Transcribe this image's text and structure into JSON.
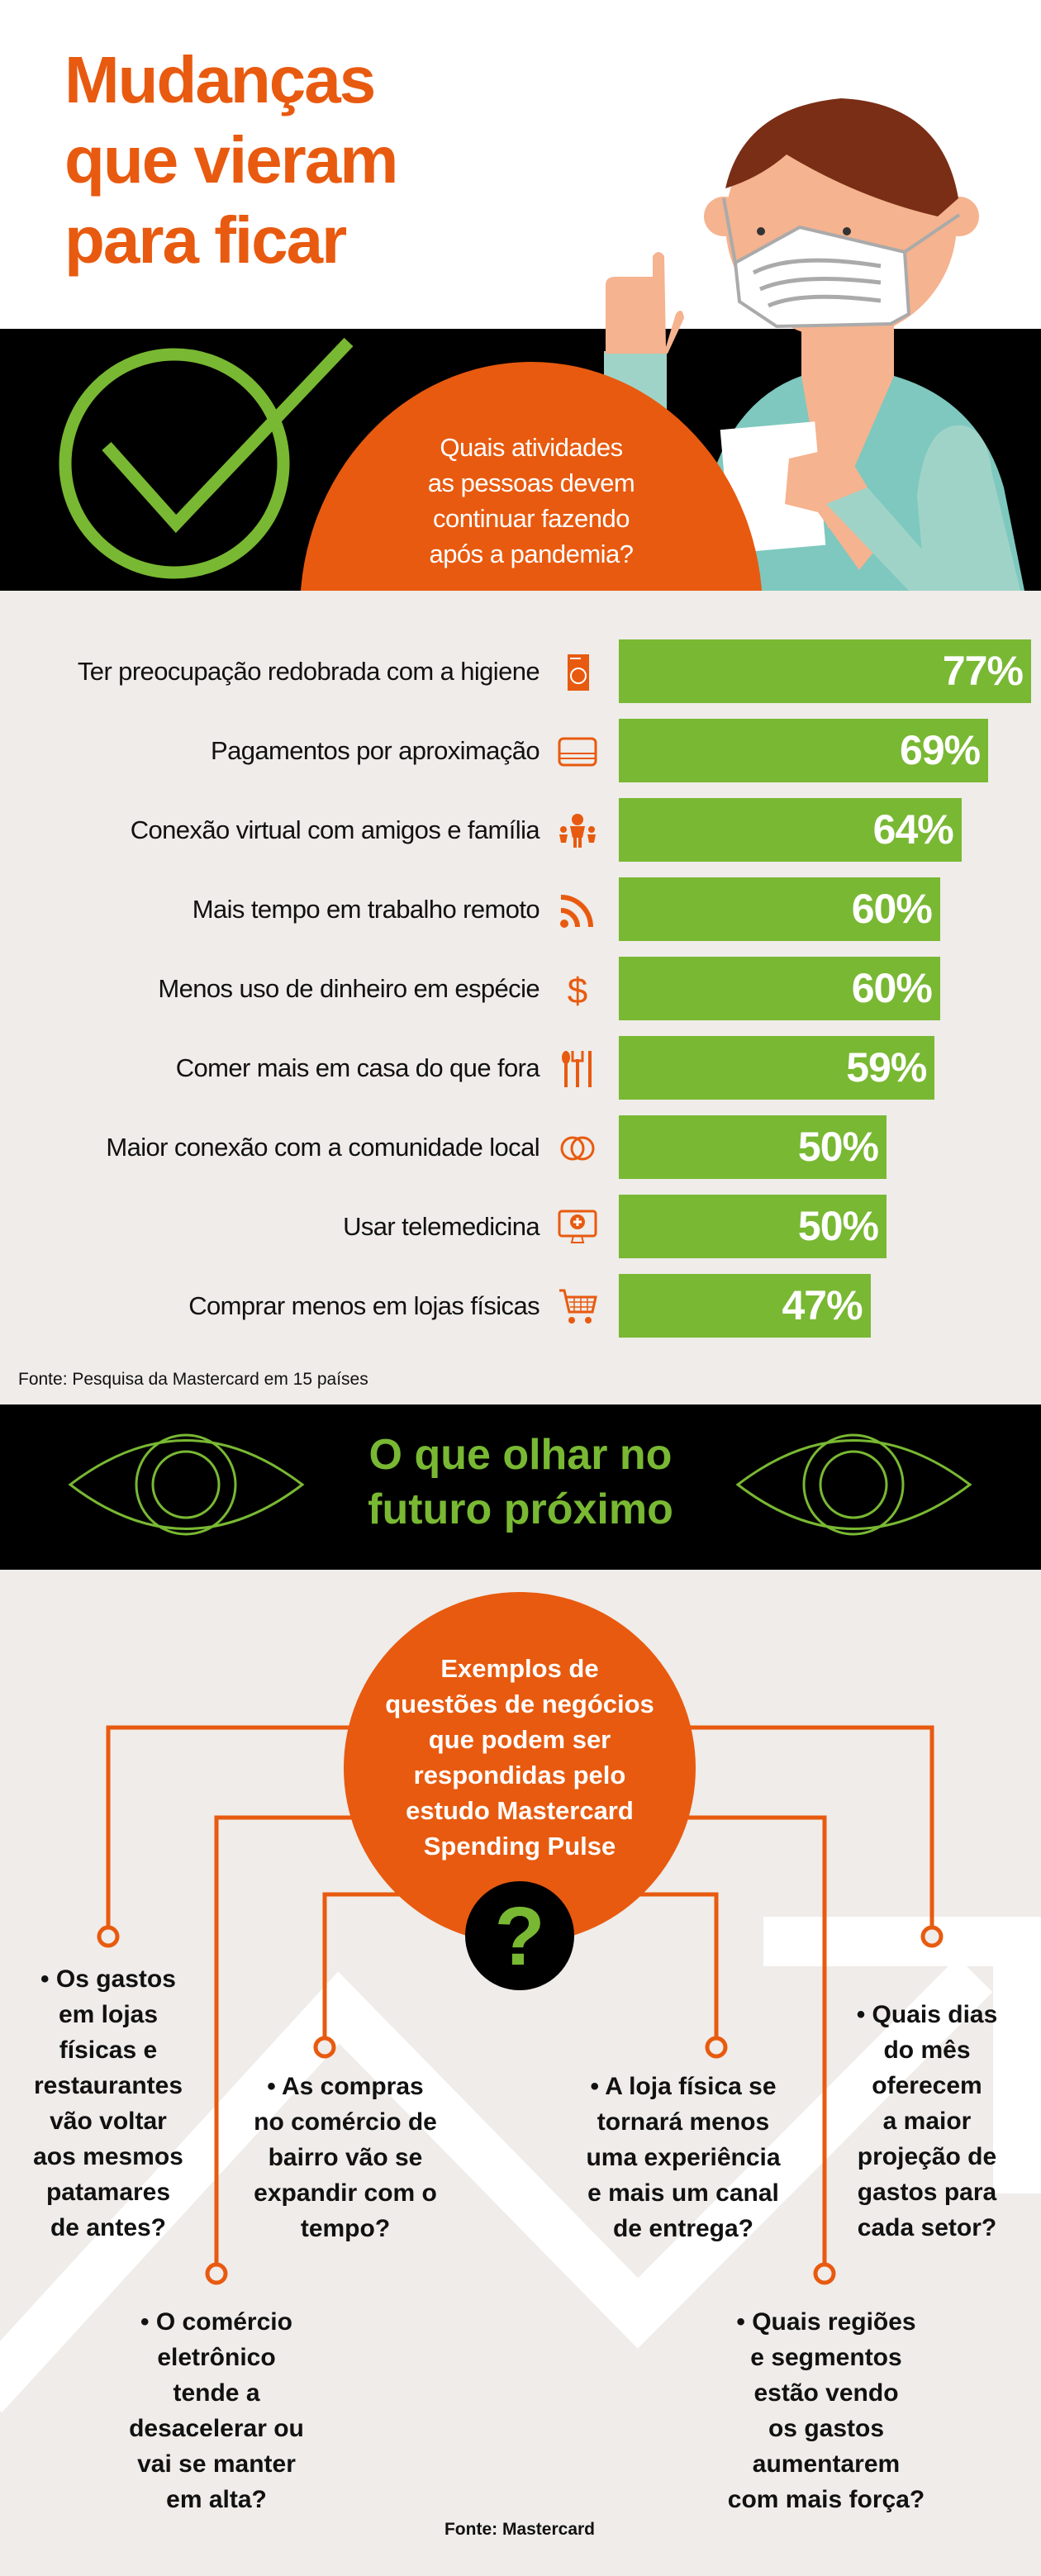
{
  "header": {
    "title_lines": [
      "Mudanças",
      "que vieram",
      "para ficar"
    ]
  },
  "question_bubble": {
    "lines": [
      "Quais atividades",
      "as pessoas devem",
      "continuar fazendo",
      "após a pandemia?"
    ]
  },
  "colors": {
    "orange": "#e85a0f",
    "green": "#79b833",
    "black": "#000000",
    "background": "#efece9"
  },
  "chart_data": {
    "type": "bar",
    "orientation": "horizontal",
    "categories": [
      "Ter preocupação redobrada com a higiene",
      "Pagamentos por aproximação",
      "Conexão virtual com amigos e família",
      "Mais tempo em trabalho remoto",
      "Menos uso de dinheiro em espécie",
      "Comer mais em casa do que fora",
      "Maior conexão com a comunidade local",
      "Usar telemedicina",
      "Comprar menos em lojas físicas"
    ],
    "values": [
      77,
      69,
      64,
      60,
      60,
      59,
      50,
      50,
      47
    ],
    "value_labels": [
      "77%",
      "69%",
      "64%",
      "60%",
      "60%",
      "59%",
      "50%",
      "50%",
      "47%"
    ],
    "icons": [
      "washing-machine-icon",
      "credit-card-icon",
      "family-icon",
      "wifi-signal-icon",
      "dollar-icon",
      "cutlery-icon",
      "rings-icon",
      "telemedicine-monitor-icon",
      "shopping-cart-icon"
    ],
    "unit": "%"
  },
  "source1": "Fonte: Pesquisa da Mastercard em 15 países",
  "section2": {
    "title_lines": [
      "O que olhar no",
      "futuro próximo"
    ],
    "center_lines": [
      "Exemplos de",
      "questões de negócios",
      "que podem ser",
      "respondidas pelo",
      "estudo Mastercard",
      "Spending Pulse"
    ],
    "center_symbol": "?",
    "questions": [
      {
        "lines": [
          "• Os gastos",
          "em lojas",
          "físicas e",
          "restaurantes",
          "vão voltar",
          "aos mesmos",
          "patamares",
          "de antes?"
        ]
      },
      {
        "lines": [
          "• O comércio",
          "eletrônico",
          "tende a",
          "desacelerar ou",
          "vai se manter",
          "em alta?"
        ]
      },
      {
        "lines": [
          "• As compras",
          "no comércio de",
          "bairro vão se",
          "expandir com o",
          "tempo?"
        ]
      },
      {
        "lines": [
          "• A loja física se",
          "tornará menos",
          "uma experiência",
          "e mais um canal",
          "de entrega?"
        ]
      },
      {
        "lines": [
          "• Quais dias",
          "do mês",
          "oferecem",
          "a maior",
          "projeção de",
          "gastos para",
          "cada setor?"
        ]
      },
      {
        "lines": [
          "• Quais regiões",
          "e segmentos",
          "estão vendo",
          "os gastos",
          "aumentarem",
          "com mais força?"
        ]
      }
    ]
  },
  "source2": "Fonte: Mastercard"
}
